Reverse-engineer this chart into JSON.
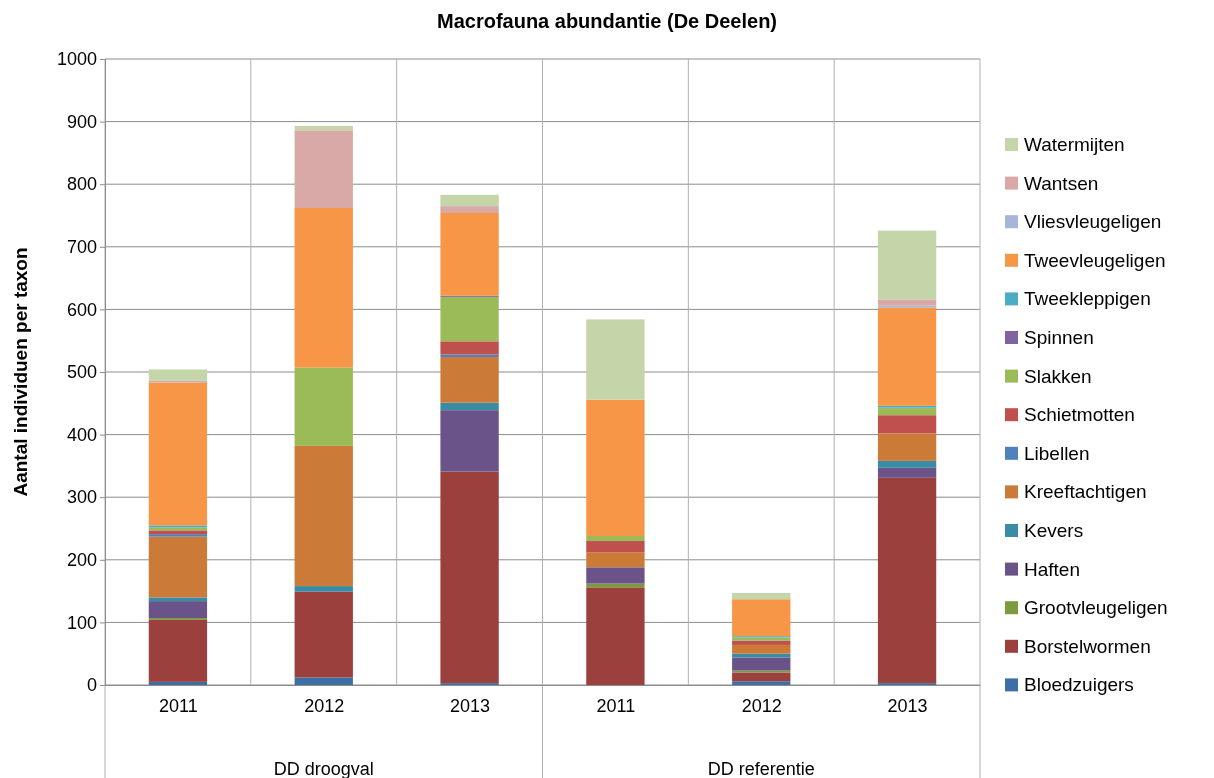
{
  "chart_data": {
    "type": "bar",
    "title": "Macrofauna abundantie (De Deelen)",
    "ylabel": "Aantal individuen per taxon",
    "categories": [
      "2011",
      "2012",
      "2013",
      "2011",
      "2012",
      "2013"
    ],
    "annotations": [
      "DD droogval",
      "DD referentie"
    ],
    "stacked": true,
    "legend": "right",
    "grid": true,
    "ylim": [
      0,
      1000
    ],
    "yticks": [
      0,
      100,
      200,
      300,
      400,
      500,
      600,
      700,
      800,
      900,
      1000
    ],
    "series": [
      {
        "name": "Bloedzuigers",
        "color": "#3e6ea6",
        "values": [
          5,
          12,
          3,
          0,
          6,
          3
        ]
      },
      {
        "name": "Borstelwormen",
        "color": "#9c403e",
        "values": [
          99,
          137,
          338,
          156,
          14,
          328
        ]
      },
      {
        "name": "Grootvleugeligen",
        "color": "#7e9a3f",
        "values": [
          3,
          0,
          0,
          6,
          3,
          0
        ]
      },
      {
        "name": "Haften",
        "color": "#6a5389",
        "values": [
          27,
          0,
          98,
          26,
          21,
          16
        ]
      },
      {
        "name": "Kevers",
        "color": "#3a8ba5",
        "values": [
          6,
          9,
          12,
          null,
          6,
          11
        ]
      },
      {
        "name": "Kreeftachtigen",
        "color": "#cc7a37",
        "values": [
          97,
          224,
          73,
          24,
          14,
          44
        ]
      },
      {
        "name": "Libellen",
        "color": "#4f81bd",
        "values": [
          4,
          0,
          4,
          0,
          0,
          0
        ]
      },
      {
        "name": "Schietmotten",
        "color": "#c0504d",
        "values": [
          6,
          0,
          21,
          18,
          7,
          29
        ]
      },
      {
        "name": "Slakken",
        "color": "#9bbb59",
        "values": [
          5,
          125,
          71,
          8,
          5,
          12
        ]
      },
      {
        "name": "Spinnen",
        "color": "#8064a2",
        "values": [
          0,
          0,
          2,
          0,
          0,
          0
        ]
      },
      {
        "name": "Tweekleppigen",
        "color": "#4bacc6",
        "values": [
          3,
          0,
          0,
          0,
          2,
          3
        ]
      },
      {
        "name": "Tweevleugeligen",
        "color": "#f79646",
        "values": [
          228,
          255,
          132,
          218,
          59,
          157
        ]
      },
      {
        "name": "Vliesvleugeligen",
        "color": "#a5b6d8",
        "values": [
          0,
          0,
          0,
          0,
          0,
          3
        ]
      },
      {
        "name": "Wantsen",
        "color": "#d9a9a8",
        "values": [
          3,
          124,
          11,
          null,
          null,
          10
        ]
      },
      {
        "name": "Watermijten",
        "color": "#c4d5a9",
        "values": [
          18,
          7,
          18,
          128,
          10,
          110
        ]
      }
    ]
  }
}
